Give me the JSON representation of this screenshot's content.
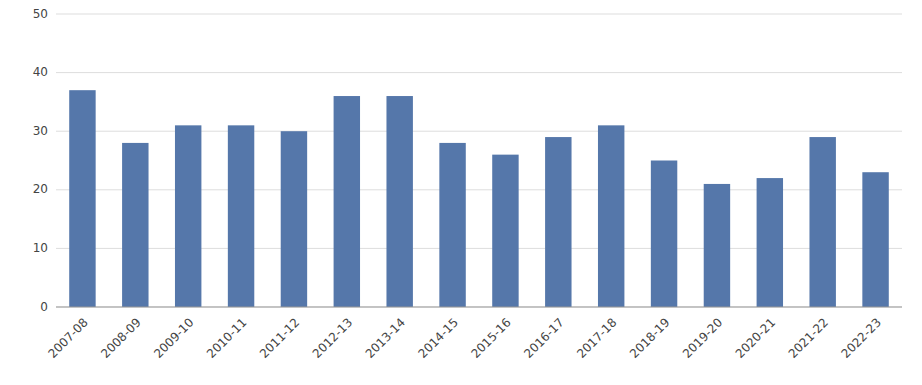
{
  "chart_data": {
    "type": "bar",
    "categories": [
      "2007-08",
      "2008-09",
      "2009-10",
      "2010-11",
      "2011-12",
      "2012-13",
      "2013-14",
      "2014-15",
      "2015-16",
      "2016-17",
      "2017-18",
      "2018-19",
      "2019-20",
      "2020-21",
      "2021-22",
      "2022-23"
    ],
    "values": [
      37,
      28,
      31,
      31,
      30,
      36,
      36,
      28,
      26,
      29,
      31,
      25,
      21,
      22,
      29,
      23
    ],
    "color": "#5577AA",
    "ylim": [
      0,
      50
    ],
    "yticks": [
      0,
      10,
      20,
      30,
      40,
      50
    ],
    "grid": true
  }
}
